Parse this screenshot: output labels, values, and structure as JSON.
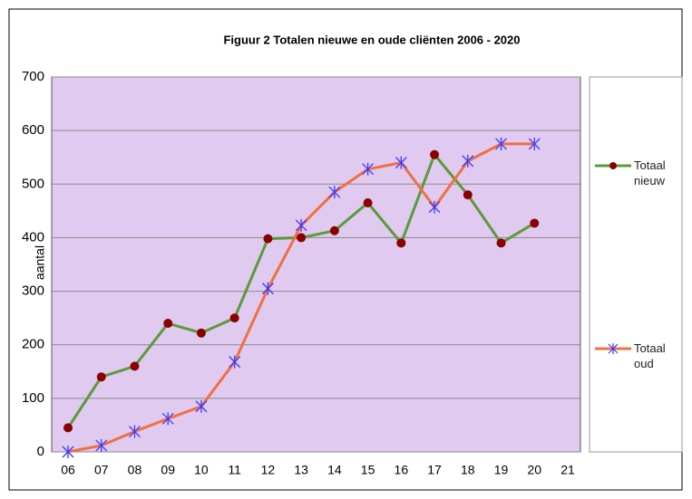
{
  "chart_data": {
    "type": "line",
    "title": "Figuur 2 Totalen nieuwe en oude cliënten 2006  - 2020",
    "y_label": "aantal",
    "categories": [
      "06",
      "07",
      "08",
      "09",
      "10",
      "11",
      "12",
      "13",
      "14",
      "15",
      "16",
      "17",
      "18",
      "19",
      "20",
      "21"
    ],
    "series": [
      {
        "name": "Totaal nieuw",
        "color": "#5b9a3a",
        "marker": "circle",
        "marker_color": "#8b0000",
        "values": [
          45,
          140,
          160,
          240,
          222,
          250,
          398,
          400,
          413,
          465,
          390,
          555,
          480,
          390,
          427,
          null
        ]
      },
      {
        "name": "Totaal oud",
        "color": "#f07040",
        "marker": "asterisk",
        "marker_color": "#3a3aff",
        "values": [
          0,
          12,
          38,
          62,
          85,
          168,
          305,
          423,
          485,
          528,
          540,
          457,
          543,
          575,
          575,
          null
        ]
      }
    ],
    "ylim": [
      0,
      700
    ],
    "yticks": [
      0,
      100,
      200,
      300,
      400,
      500,
      600,
      700
    ],
    "grid": true,
    "plot_background": "#e0caf0"
  }
}
